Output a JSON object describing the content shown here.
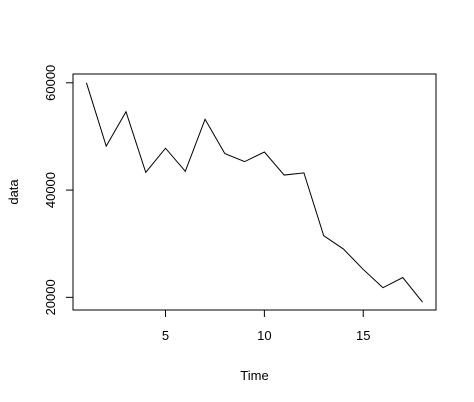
{
  "chart_data": {
    "type": "line",
    "title": "",
    "xlabel": "Time",
    "ylabel": "data",
    "x": [
      1,
      2,
      3,
      4,
      5,
      6,
      7,
      8,
      9,
      10,
      11,
      12,
      13,
      14,
      15,
      16,
      17,
      18
    ],
    "values": [
      60000,
      48200,
      54600,
      43300,
      47800,
      43500,
      53200,
      46800,
      45300,
      47100,
      42800,
      43200,
      31500,
      29000,
      25200,
      21800,
      23700,
      19100
    ],
    "xlim": [
      0.32,
      18.68
    ],
    "ylim": [
      17640,
      61640
    ],
    "x_ticks": [
      5,
      10,
      15
    ],
    "x_tick_labels": [
      "5",
      "10",
      "15"
    ],
    "y_ticks": [
      20000,
      40000,
      60000
    ],
    "y_tick_labels": [
      "20000",
      "40000",
      "60000"
    ],
    "grid": false,
    "line_color": "#000000"
  }
}
